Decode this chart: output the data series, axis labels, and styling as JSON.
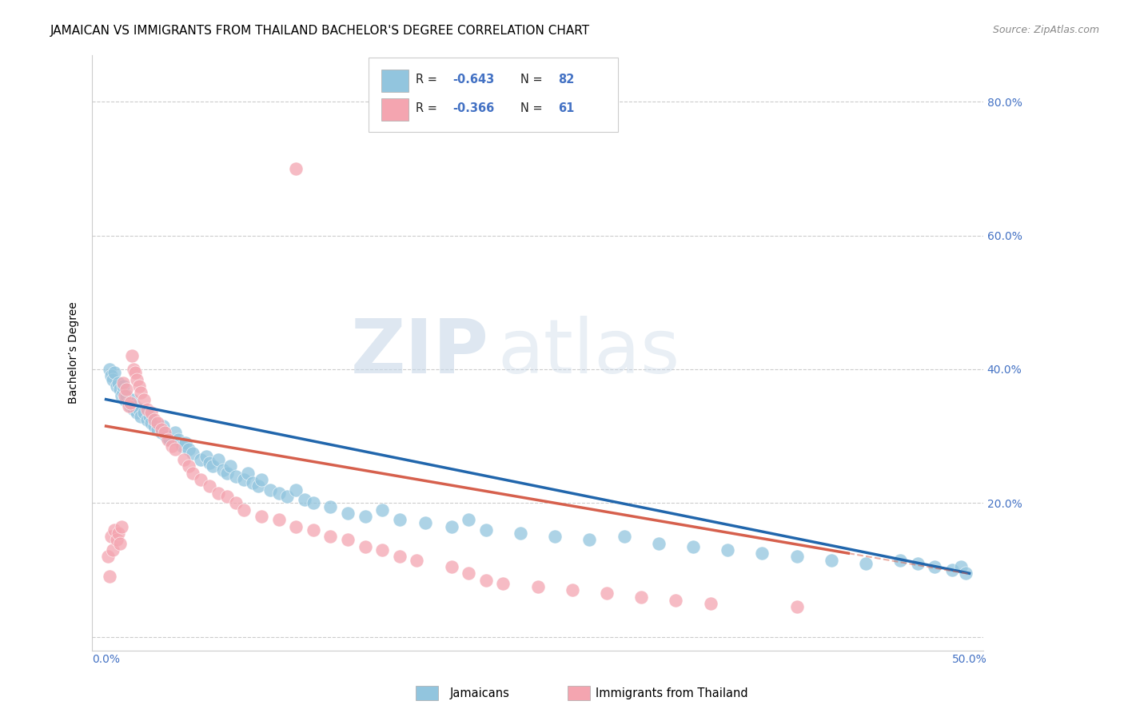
{
  "title": "JAMAICAN VS IMMIGRANTS FROM THAILAND BACHELOR'S DEGREE CORRELATION CHART",
  "source": "Source: ZipAtlas.com",
  "ylabel": "Bachelor’s Degree",
  "blue_color": "#92c5de",
  "pink_color": "#f4a5b0",
  "blue_line_color": "#2166ac",
  "pink_line_color": "#d6604d",
  "watermark_zip": "ZIP",
  "watermark_atlas": "atlas",
  "blue_R": -0.643,
  "blue_N": 82,
  "pink_R": -0.366,
  "pink_N": 61,
  "blue_scatter_x": [
    0.002,
    0.003,
    0.004,
    0.005,
    0.006,
    0.007,
    0.008,
    0.009,
    0.01,
    0.01,
    0.011,
    0.012,
    0.013,
    0.014,
    0.015,
    0.016,
    0.017,
    0.018,
    0.019,
    0.02,
    0.022,
    0.024,
    0.025,
    0.026,
    0.028,
    0.03,
    0.032,
    0.033,
    0.035,
    0.037,
    0.04,
    0.042,
    0.044,
    0.046,
    0.048,
    0.05,
    0.055,
    0.058,
    0.06,
    0.062,
    0.065,
    0.068,
    0.07,
    0.072,
    0.075,
    0.08,
    0.082,
    0.085,
    0.088,
    0.09,
    0.095,
    0.1,
    0.105,
    0.11,
    0.115,
    0.12,
    0.13,
    0.14,
    0.15,
    0.16,
    0.17,
    0.185,
    0.2,
    0.21,
    0.22,
    0.24,
    0.26,
    0.28,
    0.3,
    0.32,
    0.34,
    0.36,
    0.38,
    0.4,
    0.42,
    0.44,
    0.46,
    0.47,
    0.48,
    0.49,
    0.495,
    0.498
  ],
  "blue_scatter_y": [
    0.4,
    0.39,
    0.385,
    0.395,
    0.375,
    0.38,
    0.37,
    0.36,
    0.365,
    0.375,
    0.355,
    0.36,
    0.35,
    0.345,
    0.355,
    0.34,
    0.345,
    0.335,
    0.34,
    0.33,
    0.335,
    0.325,
    0.33,
    0.32,
    0.315,
    0.31,
    0.305,
    0.315,
    0.3,
    0.295,
    0.305,
    0.295,
    0.285,
    0.29,
    0.28,
    0.275,
    0.265,
    0.27,
    0.26,
    0.255,
    0.265,
    0.25,
    0.245,
    0.255,
    0.24,
    0.235,
    0.245,
    0.23,
    0.225,
    0.235,
    0.22,
    0.215,
    0.21,
    0.22,
    0.205,
    0.2,
    0.195,
    0.185,
    0.18,
    0.19,
    0.175,
    0.17,
    0.165,
    0.175,
    0.16,
    0.155,
    0.15,
    0.145,
    0.15,
    0.14,
    0.135,
    0.13,
    0.125,
    0.12,
    0.115,
    0.11,
    0.115,
    0.11,
    0.105,
    0.1,
    0.105,
    0.095
  ],
  "pink_scatter_x": [
    0.001,
    0.002,
    0.003,
    0.004,
    0.005,
    0.006,
    0.007,
    0.008,
    0.009,
    0.01,
    0.011,
    0.012,
    0.013,
    0.014,
    0.015,
    0.016,
    0.017,
    0.018,
    0.019,
    0.02,
    0.022,
    0.024,
    0.026,
    0.028,
    0.03,
    0.032,
    0.034,
    0.036,
    0.038,
    0.04,
    0.045,
    0.048,
    0.05,
    0.055,
    0.06,
    0.065,
    0.07,
    0.075,
    0.08,
    0.09,
    0.1,
    0.11,
    0.12,
    0.13,
    0.14,
    0.15,
    0.16,
    0.17,
    0.18,
    0.2,
    0.21,
    0.22,
    0.23,
    0.25,
    0.27,
    0.29,
    0.31,
    0.33,
    0.35,
    0.4,
    0.11
  ],
  "pink_scatter_y": [
    0.12,
    0.09,
    0.15,
    0.13,
    0.16,
    0.145,
    0.155,
    0.14,
    0.165,
    0.38,
    0.36,
    0.37,
    0.345,
    0.35,
    0.42,
    0.4,
    0.395,
    0.385,
    0.375,
    0.365,
    0.355,
    0.34,
    0.335,
    0.325,
    0.32,
    0.31,
    0.305,
    0.295,
    0.285,
    0.28,
    0.265,
    0.255,
    0.245,
    0.235,
    0.225,
    0.215,
    0.21,
    0.2,
    0.19,
    0.18,
    0.175,
    0.165,
    0.16,
    0.15,
    0.145,
    0.135,
    0.13,
    0.12,
    0.115,
    0.105,
    0.095,
    0.085,
    0.08,
    0.075,
    0.07,
    0.065,
    0.06,
    0.055,
    0.05,
    0.045,
    0.7
  ],
  "title_fontsize": 11,
  "tick_fontsize": 10,
  "tick_color": "#4472c4"
}
